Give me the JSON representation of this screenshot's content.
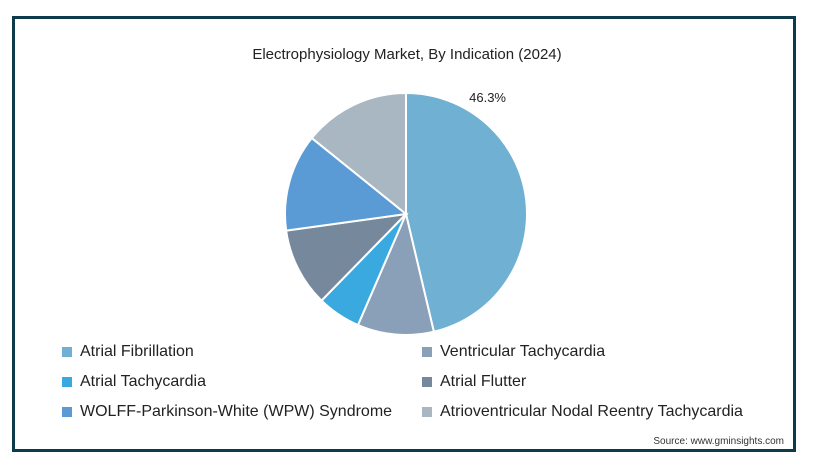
{
  "chart_data": {
    "type": "pie",
    "title": "Electrophysiology Market, By Indication (2024)",
    "slices": [
      {
        "label": "Atrial Fibrillation",
        "value": 46.3,
        "color": "#6fb0d3",
        "data_label": "46.3%"
      },
      {
        "label": "Ventricular Tachycardia",
        "value": 10.2,
        "color": "#8a9fb8",
        "data_label": ""
      },
      {
        "label": "Atrial Tachycardia",
        "value": 5.8,
        "color": "#3aa9df",
        "data_label": ""
      },
      {
        "label": "Atrial Flutter",
        "value": 10.5,
        "color": "#76889b",
        "data_label": ""
      },
      {
        "label": "WOLFF-Parkinson-White (WPW) Syndrome",
        "value": 13.0,
        "color": "#5b9bd5",
        "data_label": ""
      },
      {
        "label": "Atrioventricular Nodal Reentry Tachycardia",
        "value": 14.2,
        "color": "#a9b7c2",
        "data_label": ""
      }
    ],
    "legend_order": [
      0,
      1,
      2,
      3,
      4,
      5
    ],
    "legend_position": "bottom",
    "start_angle": "top, clockwise"
  },
  "source": "Source: www.gminsights.com"
}
